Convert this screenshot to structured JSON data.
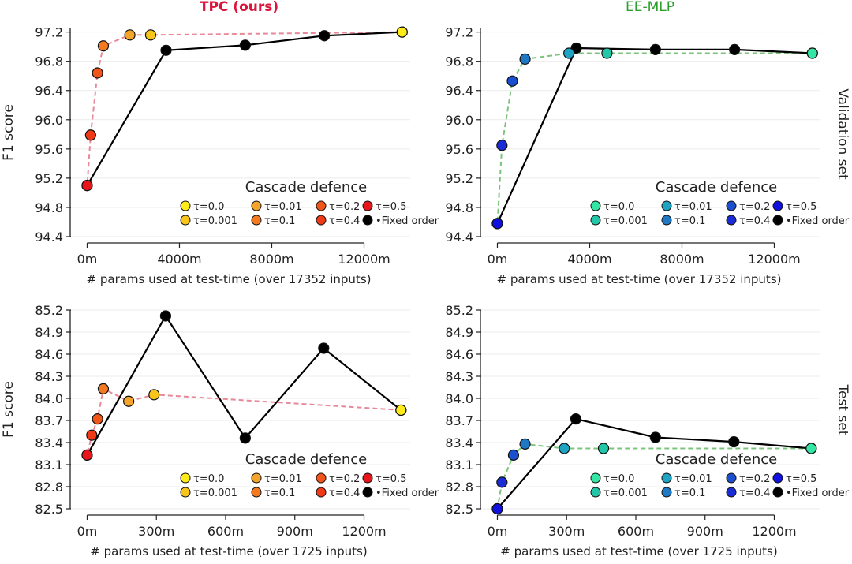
{
  "figure": {
    "col_titles": [
      {
        "text": "TPC (ours)",
        "color": "#dc143c"
      },
      {
        "text": "EE-MLP",
        "color": "#2ca02c"
      }
    ],
    "row_titles": [
      "Validation set",
      "Test set"
    ],
    "ylabel": "F1 score",
    "legend": {
      "title": "Cascade defence",
      "labels": [
        "τ=0.0",
        "τ=0.001",
        "τ=0.01",
        "τ=0.1",
        "τ=0.2",
        "τ=0.4",
        "τ=0.5",
        "Fixed order"
      ],
      "colors_tpc": [
        "#ffeb1a",
        "#f8c51a",
        "#f4a42a",
        "#f37a20",
        "#f2551a",
        "#ee3a17",
        "#e8161a",
        "#000000"
      ],
      "colors_ee": [
        "#33e6a3",
        "#22c7a8",
        "#1fa3c2",
        "#1f78c4",
        "#1a4fd0",
        "#1a2bd8",
        "#1010e0",
        "#000000"
      ],
      "fixed_marker": "•"
    },
    "line_colors": {
      "tpc": "#e8899a",
      "ee": "#7cc47c",
      "fixed": "#000000"
    }
  },
  "chart_data": [
    {
      "type": "line",
      "panel": "TPC (ours) — Validation set",
      "xlabel": "# params used at test-time (over 17352 inputs)",
      "ylabel": "F1 score",
      "xlim": [
        -700,
        14000
      ],
      "ylim": [
        94.4,
        97.25
      ],
      "xticks": [
        0,
        4000,
        8000,
        12000
      ],
      "xtick_labels": [
        "0m",
        "4000m",
        "8000m",
        "12000m"
      ],
      "yticks": [
        94.4,
        94.8,
        95.2,
        95.6,
        96.0,
        96.4,
        96.8,
        97.2
      ],
      "ytick_labels": [
        "94.4",
        "94.8",
        "95.2",
        "95.6",
        "96.0",
        "96.4",
        "96.8",
        "97.2"
      ],
      "series": [
        {
          "style": "dashed",
          "line": "tpc",
          "points": [
            [
              13650,
              97.2
            ],
            [
              2750,
              97.16
            ],
            [
              1850,
              97.16
            ],
            [
              700,
              97.01
            ],
            [
              450,
              96.64
            ],
            [
              150,
              95.79
            ],
            [
              0,
              95.1
            ]
          ],
          "colors": [
            "#ffeb1a",
            "#f8c51a",
            "#f4a42a",
            "#f37a20",
            "#f2551a",
            "#ee3a17",
            "#e8161a"
          ]
        },
        {
          "style": "solid",
          "line": "fixed",
          "name": "Fixed order",
          "points": [
            [
              0,
              95.1
            ],
            [
              3420,
              96.95
            ],
            [
              6850,
              97.02
            ],
            [
              10280,
              97.15
            ],
            [
              13650,
              97.2
            ]
          ],
          "colors": [
            "#e8161a",
            "#000000",
            "#000000",
            "#000000",
            "#ffeb1a"
          ]
        }
      ]
    },
    {
      "type": "line",
      "panel": "EE-MLP — Validation set",
      "xlabel": "# params used at test-time (over 17352 inputs)",
      "ylabel": "",
      "xlim": [
        -700,
        14000
      ],
      "ylim": [
        94.4,
        97.25
      ],
      "xticks": [
        0,
        4000,
        8000,
        12000
      ],
      "xtick_labels": [
        "0m",
        "4000m",
        "8000m",
        "12000m"
      ],
      "yticks": [
        94.4,
        94.8,
        95.2,
        95.6,
        96.0,
        96.4,
        96.8,
        97.2
      ],
      "ytick_labels": [
        "94.4",
        "94.8",
        "95.2",
        "95.6",
        "96.0",
        "96.4",
        "96.8",
        "97.2"
      ],
      "series": [
        {
          "style": "dashed",
          "line": "ee",
          "points": [
            [
              13650,
              96.91
            ],
            [
              4750,
              96.91
            ],
            [
              3100,
              96.91
            ],
            [
              1200,
              96.83
            ],
            [
              650,
              96.53
            ],
            [
              200,
              95.65
            ],
            [
              0,
              94.58
            ]
          ],
          "colors": [
            "#33e6a3",
            "#22c7a8",
            "#1fa3c2",
            "#1f78c4",
            "#1a4fd0",
            "#1a2bd8",
            "#1010e0"
          ]
        },
        {
          "style": "solid",
          "line": "fixed",
          "name": "Fixed order",
          "points": [
            [
              0,
              94.58
            ],
            [
              3420,
              96.98
            ],
            [
              6850,
              96.96
            ],
            [
              10280,
              96.96
            ],
            [
              13650,
              96.91
            ]
          ],
          "colors": [
            "#1010e0",
            "#000000",
            "#000000",
            "#000000",
            "#33e6a3"
          ]
        }
      ]
    },
    {
      "type": "line",
      "panel": "TPC (ours) — Test set",
      "xlabel": "# params used at test-time (over 1725 inputs)",
      "ylabel": "F1 score",
      "xlim": [
        -70,
        1400
      ],
      "ylim": [
        82.5,
        85.2
      ],
      "xticks": [
        0,
        300,
        600,
        900,
        1200
      ],
      "xtick_labels": [
        "0m",
        "300m",
        "600m",
        "900m",
        "1200m"
      ],
      "yticks": [
        82.5,
        82.8,
        83.1,
        83.4,
        83.7,
        84.0,
        84.3,
        84.6,
        84.9,
        85.2
      ],
      "ytick_labels": [
        "82.5",
        "82.8",
        "83.1",
        "83.4",
        "83.7",
        "84.0",
        "84.3",
        "84.6",
        "84.9",
        "85.2"
      ],
      "series": [
        {
          "style": "dashed",
          "line": "tpc",
          "points": [
            [
              1360,
              83.84
            ],
            [
              290,
              84.05
            ],
            [
              180,
              83.96
            ],
            [
              70,
              84.13
            ],
            [
              45,
              83.72
            ],
            [
              20,
              83.5
            ],
            [
              0,
              83.23
            ]
          ],
          "colors": [
            "#ffeb1a",
            "#f8c51a",
            "#f4a42a",
            "#f37a20",
            "#f2551a",
            "#ee3a17",
            "#e8161a"
          ]
        },
        {
          "style": "solid",
          "line": "fixed",
          "name": "Fixed order",
          "points": [
            [
              0,
              83.23
            ],
            [
              340,
              85.12
            ],
            [
              685,
              83.46
            ],
            [
              1025,
              84.68
            ],
            [
              1360,
              83.84
            ]
          ],
          "colors": [
            "#e8161a",
            "#000000",
            "#000000",
            "#000000",
            "#ffeb1a"
          ]
        }
      ]
    },
    {
      "type": "line",
      "panel": "EE-MLP — Test set",
      "xlabel": "# params used at test-time (over 1725 inputs)",
      "ylabel": "",
      "xlim": [
        -70,
        1400
      ],
      "ylim": [
        82.5,
        85.2
      ],
      "xticks": [
        0,
        300,
        600,
        900,
        1200
      ],
      "xtick_labels": [
        "0m",
        "300m",
        "600m",
        "900m",
        "1200m"
      ],
      "yticks": [
        82.5,
        82.8,
        83.1,
        83.4,
        83.7,
        84.0,
        84.3,
        84.6,
        84.9,
        85.2
      ],
      "ytick_labels": [
        "82.5",
        "82.8",
        "83.1",
        "83.4",
        "83.7",
        "84.0",
        "84.3",
        "84.6",
        "84.9",
        "85.2"
      ],
      "series": [
        {
          "style": "dashed",
          "line": "ee",
          "points": [
            [
              1360,
              83.32
            ],
            [
              460,
              83.32
            ],
            [
              290,
              83.32
            ],
            [
              120,
              83.38
            ],
            [
              70,
              83.23
            ],
            [
              20,
              82.86
            ],
            [
              0,
              82.5
            ]
          ],
          "colors": [
            "#33e6a3",
            "#22c7a8",
            "#1fa3c2",
            "#1f78c4",
            "#1a4fd0",
            "#1a2bd8",
            "#1010e0"
          ]
        },
        {
          "style": "solid",
          "line": "fixed",
          "name": "Fixed order",
          "points": [
            [
              0,
              82.5
            ],
            [
              340,
              83.72
            ],
            [
              685,
              83.47
            ],
            [
              1025,
              83.41
            ],
            [
              1360,
              83.32
            ]
          ],
          "colors": [
            "#1010e0",
            "#000000",
            "#000000",
            "#000000",
            "#33e6a3"
          ]
        }
      ]
    }
  ]
}
